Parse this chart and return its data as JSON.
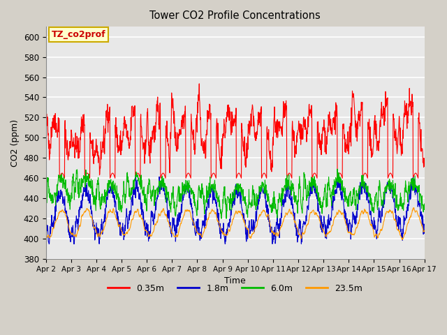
{
  "title": "Tower CO2 Profile Concentrations",
  "xlabel": "Time",
  "ylabel": "CO2 (ppm)",
  "ylim": [
    380,
    610
  ],
  "yticks": [
    380,
    400,
    420,
    440,
    460,
    480,
    500,
    520,
    540,
    560,
    580,
    600
  ],
  "xtick_labels": [
    "Apr 2",
    "Apr 3",
    "Apr 4",
    "Apr 5",
    "Apr 6",
    "Apr 7",
    "Apr 8",
    "Apr 9",
    "Apr 10",
    "Apr 11",
    "Apr 12",
    "Apr 13",
    "Apr 14",
    "Apr 15",
    "Apr 16",
    "Apr 17"
  ],
  "series_labels": [
    "0.35m",
    "1.8m",
    "6.0m",
    "23.5m"
  ],
  "series_colors": [
    "#ff0000",
    "#0000cc",
    "#00bb00",
    "#ff9900"
  ],
  "annotation_text": "TZ_co2prof",
  "annotation_bg": "#ffffcc",
  "annotation_border": "#ccaa00",
  "plot_bg": "#e8e8e8",
  "grid_color": "#ffffff",
  "n_days": 15,
  "seed": 42
}
